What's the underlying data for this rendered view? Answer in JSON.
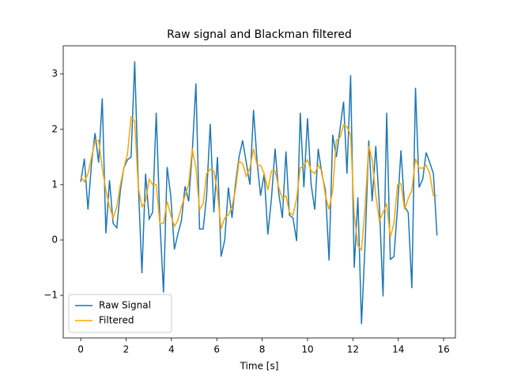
{
  "chart_data": {
    "type": "line",
    "title": "Raw signal and Blackman filtered",
    "xlabel": "Time [s]",
    "x": [
      0,
      0.16,
      0.32,
      0.48,
      0.63,
      0.79,
      0.95,
      1.11,
      1.27,
      1.43,
      1.59,
      1.75,
      1.9,
      2.06,
      2.22,
      2.38,
      2.54,
      2.7,
      2.86,
      3.02,
      3.17,
      3.33,
      3.49,
      3.65,
      3.81,
      3.97,
      4.13,
      4.28,
      4.44,
      4.6,
      4.76,
      4.92,
      5.08,
      5.24,
      5.4,
      5.55,
      5.71,
      5.87,
      6.03,
      6.19,
      6.35,
      6.51,
      6.67,
      6.82,
      6.98,
      7.14,
      7.3,
      7.46,
      7.62,
      7.78,
      7.93,
      8.09,
      8.25,
      8.41,
      8.57,
      8.73,
      8.89,
      9.05,
      9.2,
      9.36,
      9.52,
      9.68,
      9.84,
      10,
      10.16,
      10.32,
      10.47,
      10.63,
      10.79,
      10.95,
      11.11,
      11.27,
      11.43,
      11.59,
      11.74,
      11.9,
      12.06,
      12.22,
      12.38,
      12.54,
      12.7,
      12.85,
      13.01,
      13.17,
      13.33,
      13.49,
      13.65,
      13.81,
      13.97,
      14.12,
      14.28,
      14.44,
      14.6,
      14.76,
      14.92,
      15.08,
      15.23,
      15.39,
      15.55,
      15.71
    ],
    "series": [
      {
        "name": "Raw Signal",
        "color": "#1f77b4",
        "values": [
          1.05,
          1.47,
          0.55,
          1.4,
          1.93,
          1.4,
          2.56,
          0.12,
          1.08,
          0.3,
          0.22,
          0.9,
          1.3,
          1.45,
          1.5,
          3.23,
          1.0,
          -0.6,
          1.2,
          0.38,
          0.5,
          2.3,
          0.35,
          -0.95,
          1.32,
          0.8,
          -0.17,
          0.1,
          0.35,
          0.97,
          0.7,
          1.6,
          2.83,
          0.2,
          0.2,
          0.8,
          2.1,
          0.5,
          1.5,
          -0.3,
          0,
          0.95,
          0.4,
          1.0,
          1.5,
          1.8,
          1.4,
          1.0,
          2.35,
          1.4,
          0.8,
          1.2,
          0.1,
          0.75,
          1.65,
          0.85,
          0.4,
          1.6,
          0.45,
          0.4,
          -0.02,
          2.3,
          0.95,
          2.2,
          1.0,
          0.55,
          1.65,
          1.2,
          0.9,
          -0.37,
          1.9,
          1.5,
          2.0,
          2.5,
          1.2,
          2.98,
          -0.5,
          0.77,
          -1.52,
          -0.05,
          1.8,
          0.7,
          1.7,
          0.6,
          -1.02,
          2.3,
          -0.35,
          -0.3,
          0.6,
          1.62,
          0.6,
          0.5,
          -0.87,
          2.75,
          0.95,
          1.1,
          1.58,
          1.4,
          1.2,
          0.08
        ]
      },
      {
        "name": "Filtered",
        "color": "orange",
        "values": [
          1.15,
          1.05,
          1.2,
          1.5,
          1.78,
          1.8,
          1.3,
          0.9,
          0.6,
          0.4,
          0.6,
          1.0,
          1.3,
          1.55,
          2.22,
          2.15,
          0.95,
          0.6,
          0.7,
          1.1,
          1.0,
          1.0,
          0.3,
          0.3,
          0.7,
          0.45,
          0.25,
          0.35,
          0.6,
          0.8,
          1.0,
          1.65,
          1.3,
          0.55,
          0.65,
          1.2,
          1.28,
          1.25,
          0.85,
          0.2,
          0.4,
          0.45,
          0.6,
          0.9,
          1.42,
          1.38,
          1.15,
          1.3,
          1.65,
          1.35,
          1.35,
          1.2,
          0.9,
          1.25,
          1.25,
          0.95,
          0.75,
          0.8,
          0.5,
          0.45,
          0.75,
          1.3,
          1.35,
          1.45,
          1.25,
          1.2,
          1.35,
          1.25,
          0.8,
          0.55,
          0.9,
          1.8,
          1.85,
          2.08,
          2.05,
          1.9,
          0.45,
          -0.1,
          -0.18,
          0.6,
          1.7,
          1.45,
          0.8,
          0.35,
          0.5,
          0.65,
          0.05,
          0.3,
          1.0,
          1.02,
          0.55,
          0.75,
          0.9,
          1.47,
          1.3,
          1.3,
          1.35,
          1.2,
          0.8,
          0.8
        ]
      }
    ],
    "xlim": [
      -0.77,
      16.52
    ],
    "xticks": [
      0,
      2,
      4,
      6,
      8,
      10,
      12,
      14,
      16
    ],
    "ylim": [
      -1.77,
      3.51
    ],
    "yticks": [
      {
        "value": -1,
        "label": "−1"
      },
      0,
      1,
      2,
      3
    ],
    "legend": "lower left"
  }
}
